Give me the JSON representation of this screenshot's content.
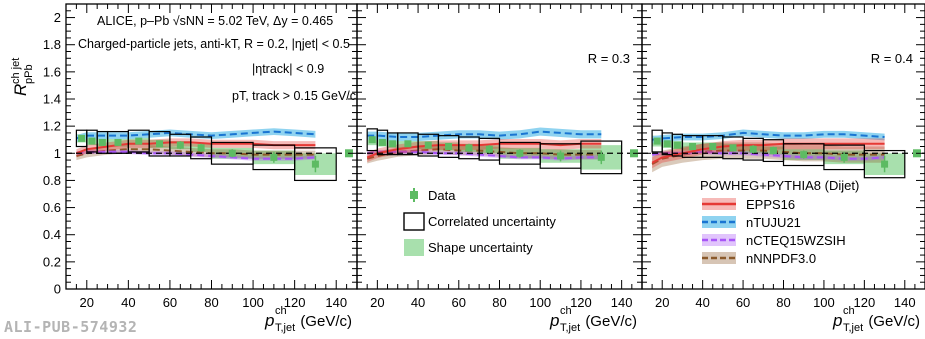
{
  "figure_id": "ALI-PUB-574932",
  "chart_data": {
    "type": "line",
    "y_axis": {
      "label_main": "R",
      "label_sup": "ch jet",
      "label_sub": "pPb",
      "ylim": [
        0,
        2.1
      ],
      "ticks": [
        "0",
        "0.2",
        "0.4",
        "0.6",
        "0.8",
        "1",
        "1.2",
        "1.4",
        "1.6",
        "1.8",
        "2"
      ],
      "tick_values": [
        0,
        0.2,
        0.4,
        0.6,
        0.8,
        1.0,
        1.2,
        1.4,
        1.6,
        1.8,
        2.0
      ]
    },
    "x_axis": {
      "label_p": "p",
      "label_sup": "ch",
      "label_sub": "T,jet",
      "label_unit": "(GeV/c)",
      "xlim": [
        10,
        150
      ],
      "ticks": [
        "20",
        "40",
        "60",
        "80",
        "100",
        "120",
        "140"
      ],
      "tick_values": [
        20,
        40,
        60,
        80,
        100,
        120,
        140
      ]
    },
    "reference_line": 1.0,
    "annotations": {
      "line1": "ALICE, p–Pb √sNN = 5.02 TeV, Δy = 0.465",
      "line2": "Charged-particle jets, anti-kT, R = 0.2, |ηjet| < 0.5",
      "line3": "|ηtrack| < 0.9",
      "line4": "pT, track > 0.15 GeV/c"
    },
    "legend_left": {
      "data": "Data",
      "correlated": "Correlated uncertainty",
      "shape": "Shape uncertainty"
    },
    "legend_right": {
      "title": "POWHEG+PYTHIA8 (Dijet)",
      "entries": [
        "EPPS16",
        "nTUJU21",
        "nCTEQ15WZSIH",
        "nNNPDF3.0"
      ]
    },
    "colors": {
      "data": "#5dbb63",
      "shape_band": "#a8e0ad",
      "EPPS16": "#e53935",
      "nTUJU21": "#1a75d2",
      "nTUJU21_band": "#8fd3f0",
      "nCTEQ15WZSIH": "#a855f7",
      "nNNPDF3.0": "#8b5a2b"
    },
    "bins": [
      [
        15,
        20
      ],
      [
        20,
        25
      ],
      [
        25,
        30
      ],
      [
        30,
        40
      ],
      [
        40,
        50
      ],
      [
        50,
        60
      ],
      [
        60,
        70
      ],
      [
        70,
        80
      ],
      [
        80,
        100
      ],
      [
        100,
        120
      ],
      [
        120,
        140
      ]
    ],
    "panels": [
      {
        "R_label": "",
        "data": [
          1.11,
          1.09,
          1.08,
          1.08,
          1.09,
          1.07,
          1.06,
          1.04,
          1.0,
          0.97,
          0.92
        ],
        "stat_err": [
          0.02,
          0.02,
          0.02,
          0.02,
          0.02,
          0.02,
          0.03,
          0.03,
          0.03,
          0.04,
          0.06
        ],
        "corr_err": [
          0.06,
          0.08,
          0.08,
          0.08,
          0.08,
          0.09,
          0.08,
          0.08,
          0.08,
          0.09,
          0.12
        ],
        "shape_err": [
          0.03,
          0.03,
          0.03,
          0.03,
          0.03,
          0.03,
          0.03,
          0.03,
          0.04,
          0.05,
          0.08
        ],
        "models": {
          "x": [
            15,
            20,
            30,
            40,
            50,
            60,
            70,
            80,
            90,
            100,
            110,
            120,
            130
          ],
          "EPPS16": [
            1.0,
            1.03,
            1.05,
            1.07,
            1.07,
            1.08,
            1.08,
            1.07,
            1.07,
            1.07,
            1.06,
            1.06,
            1.06
          ],
          "EPPS16_unc": 0.03,
          "nTUJU21": [
            1.11,
            1.13,
            1.13,
            1.13,
            1.14,
            1.15,
            1.14,
            1.13,
            1.14,
            1.15,
            1.16,
            1.15,
            1.14
          ],
          "nTUJU21_unc": 0.025,
          "nCTEQ15WZSIH": [
            1.0,
            1.01,
            1.01,
            1.01,
            1.0,
            1.0,
            0.99,
            0.98,
            0.97,
            0.96,
            0.96,
            0.96,
            0.97
          ],
          "nCTEQ15WZSIH_unc": 0.015,
          "nNNPDF3.0": [
            0.98,
            1.0,
            1.02,
            1.03,
            1.03,
            1.02,
            1.01,
            1.0,
            1.0,
            0.99,
            0.99,
            0.99,
            0.99
          ],
          "nNNPDF3.0_unc": 0.03
        }
      },
      {
        "R_label": "R = 0.3",
        "data": [
          1.1,
          1.08,
          1.07,
          1.07,
          1.06,
          1.05,
          1.04,
          1.03,
          1.0,
          0.98,
          0.97
        ],
        "stat_err": [
          0.02,
          0.02,
          0.02,
          0.02,
          0.02,
          0.02,
          0.03,
          0.03,
          0.03,
          0.04,
          0.05
        ],
        "corr_err": [
          0.08,
          0.09,
          0.08,
          0.08,
          0.08,
          0.08,
          0.08,
          0.08,
          0.08,
          0.09,
          0.12
        ],
        "shape_err": [
          0.04,
          0.03,
          0.03,
          0.03,
          0.03,
          0.03,
          0.03,
          0.03,
          0.04,
          0.05,
          0.09
        ],
        "models": {
          "x": [
            15,
            20,
            30,
            40,
            50,
            60,
            70,
            80,
            90,
            100,
            110,
            120,
            130
          ],
          "EPPS16": [
            0.97,
            1.0,
            1.03,
            1.05,
            1.06,
            1.06,
            1.06,
            1.07,
            1.07,
            1.07,
            1.06,
            1.07,
            1.07
          ],
          "EPPS16_unc": 0.035,
          "nTUJU21": [
            1.13,
            1.13,
            1.12,
            1.12,
            1.13,
            1.14,
            1.14,
            1.13,
            1.14,
            1.16,
            1.15,
            1.14,
            1.14
          ],
          "nTUJU21_unc": 0.03,
          "nCTEQ15WZSIH": [
            1.0,
            1.01,
            1.01,
            1.01,
            1.0,
            1.0,
            0.99,
            0.98,
            0.97,
            0.97,
            0.96,
            0.97,
            0.97
          ],
          "nCTEQ15WZSIH_unc": 0.015,
          "nNNPDF3.0": [
            0.96,
            0.98,
            1.01,
            1.02,
            1.03,
            1.02,
            1.02,
            1.01,
            1.0,
            1.0,
            0.99,
            0.99,
            0.99
          ],
          "nNNPDF3.0_unc": 0.035
        }
      },
      {
        "R_label": "R = 0.4",
        "data": [
          1.09,
          1.07,
          1.06,
          1.05,
          1.05,
          1.04,
          1.03,
          1.02,
          0.99,
          0.97,
          0.92
        ],
        "stat_err": [
          0.02,
          0.02,
          0.02,
          0.02,
          0.02,
          0.02,
          0.03,
          0.03,
          0.03,
          0.04,
          0.06
        ],
        "corr_err": [
          0.08,
          0.08,
          0.08,
          0.08,
          0.08,
          0.08,
          0.08,
          0.08,
          0.08,
          0.09,
          0.1
        ],
        "shape_err": [
          0.04,
          0.03,
          0.03,
          0.03,
          0.03,
          0.03,
          0.03,
          0.03,
          0.04,
          0.05,
          0.08
        ],
        "models": {
          "x": [
            15,
            20,
            30,
            40,
            50,
            60,
            70,
            80,
            90,
            100,
            110,
            120,
            130
          ],
          "EPPS16": [
            0.93,
            0.97,
            1.0,
            1.03,
            1.05,
            1.06,
            1.06,
            1.07,
            1.07,
            1.07,
            1.07,
            1.07,
            1.07
          ],
          "EPPS16_unc": 0.04,
          "nTUJU21": [
            1.1,
            1.11,
            1.12,
            1.12,
            1.13,
            1.15,
            1.14,
            1.13,
            1.13,
            1.14,
            1.14,
            1.13,
            1.12
          ],
          "nTUJU21_unc": 0.025,
          "nCTEQ15WZSIH": [
            0.99,
            1.0,
            1.0,
            1.01,
            1.0,
            1.0,
            0.99,
            0.98,
            0.97,
            0.97,
            0.96,
            0.96,
            0.97
          ],
          "nCTEQ15WZSIH_unc": 0.015,
          "nNNPDF3.0": [
            0.92,
            0.96,
            0.99,
            1.01,
            1.02,
            1.02,
            1.02,
            1.01,
            1.0,
            1.0,
            0.99,
            0.99,
            0.99
          ],
          "nNNPDF3.0_unc": 0.06
        }
      }
    ]
  }
}
